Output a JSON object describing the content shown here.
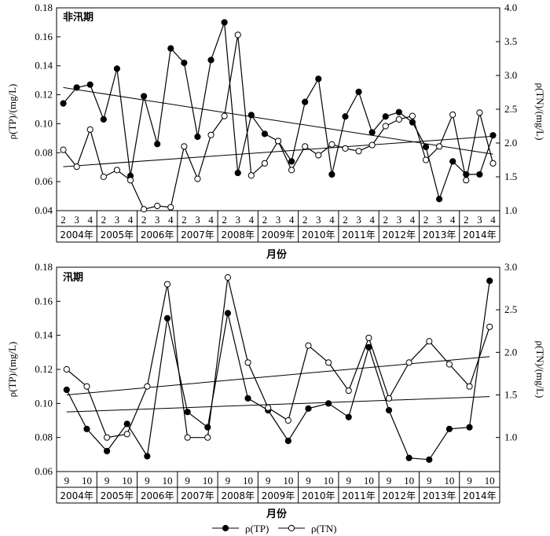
{
  "legend": {
    "tp_label": "ρ(TP)",
    "tn_label": "ρ(TN)"
  },
  "chart_data": [
    {
      "type": "line",
      "title": "非汛期",
      "xlabel": "月份",
      "ylabel_left": "ρ(TP)/(mg/L)",
      "ylabel_right": "ρ(TN)/(mg/L)",
      "ylim_left": [
        0.04,
        0.18
      ],
      "ylim_right": [
        1.0,
        4.0
      ],
      "yticks_left": [
        "0.04",
        "0.06",
        "0.08",
        "0.10",
        "0.12",
        "0.14",
        "0.16",
        "0.18"
      ],
      "yticks_right": [
        "1.0",
        "1.5",
        "2.0",
        "2.5",
        "3.0",
        "3.5",
        "4.0"
      ],
      "months": [
        "2",
        "3",
        "4"
      ],
      "years": [
        "2004年",
        "2005年",
        "2006年",
        "2007年",
        "2008年",
        "2009年",
        "2010年",
        "2011年",
        "2012年",
        "2013年",
        "2014年"
      ],
      "series": [
        {
          "name": "ρ(TP)",
          "axis": "left",
          "marker": "filled",
          "values": [
            0.114,
            0.125,
            0.127,
            0.103,
            0.138,
            0.064,
            0.119,
            0.086,
            0.152,
            0.142,
            0.091,
            0.144,
            0.17,
            0.066,
            0.106,
            0.093,
            0.088,
            0.074,
            0.115,
            0.131,
            0.065,
            0.105,
            0.122,
            0.094,
            0.105,
            0.108,
            0.101,
            0.084,
            0.048,
            0.074,
            0.065,
            0.065,
            0.092
          ],
          "trend": [
            0.125,
            0.079
          ]
        },
        {
          "name": "ρ(TN)",
          "axis": "right",
          "marker": "open",
          "values": [
            1.9,
            1.65,
            2.2,
            1.5,
            1.6,
            1.45,
            1.02,
            1.07,
            1.05,
            1.95,
            1.47,
            2.12,
            2.4,
            3.6,
            1.52,
            1.7,
            2.03,
            1.6,
            1.95,
            1.82,
            1.98,
            1.92,
            1.88,
            1.97,
            2.25,
            2.35,
            2.4,
            1.75,
            1.95,
            2.42,
            1.45,
            2.45,
            1.7
          ],
          "trend": [
            1.65,
            2.1
          ]
        }
      ]
    },
    {
      "type": "line",
      "title": "汛期",
      "xlabel": "月份",
      "ylabel_left": "ρ(TP)/(mg/L)",
      "ylabel_right": "ρ(TN)/(mg/L)",
      "ylim_left": [
        0.06,
        0.18
      ],
      "ylim_right": [
        0.6,
        3.0
      ],
      "yticks_left": [
        "0.06",
        "0.08",
        "0.10",
        "0.12",
        "0.14",
        "0.16",
        "0.18"
      ],
      "yticks_right": [
        "1.0",
        "1.5",
        "2.0",
        "2.5",
        "3.0"
      ],
      "months": [
        "9",
        "10"
      ],
      "years": [
        "2004年",
        "2005年",
        "2006年",
        "2007年",
        "2008年",
        "2009年",
        "2010年",
        "2011年",
        "2012年",
        "2013年",
        "2014年"
      ],
      "series": [
        {
          "name": "ρ(TP)",
          "axis": "left",
          "marker": "filled",
          "values": [
            0.108,
            0.085,
            0.072,
            0.088,
            0.069,
            0.15,
            0.095,
            0.086,
            0.153,
            0.103,
            0.096,
            0.078,
            0.097,
            0.1,
            0.092,
            0.133,
            0.096,
            0.068,
            0.067,
            0.085,
            0.086,
            0.172
          ],
          "trend": [
            0.095,
            0.104
          ]
        },
        {
          "name": "ρ(TN)",
          "axis": "right",
          "marker": "open",
          "values": [
            1.8,
            1.6,
            1.0,
            1.04,
            1.6,
            2.8,
            1.0,
            1.0,
            2.88,
            1.88,
            1.35,
            1.2,
            2.08,
            1.88,
            1.55,
            2.17,
            1.46,
            1.88,
            2.13,
            1.86,
            1.6,
            2.3
          ],
          "trend": [
            1.5,
            1.95
          ]
        }
      ]
    }
  ]
}
